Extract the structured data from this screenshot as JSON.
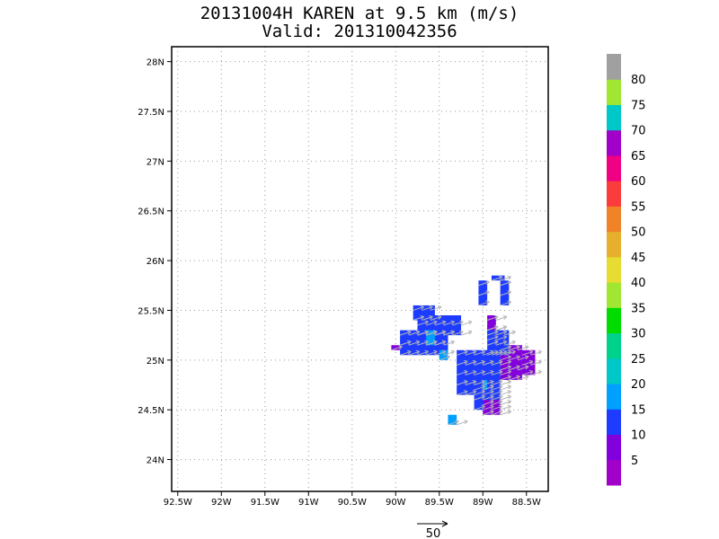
{
  "chart_data": {
    "type": "heatmap",
    "title": "20131004H KAREN at 9.5 km (m/s)",
    "subtitle": "Valid: 201310042356",
    "xlabel": "",
    "ylabel": "",
    "xlim": [
      -92.57,
      -88.25
    ],
    "ylim": [
      23.68,
      28.15
    ],
    "x_ticks": [
      {
        "value": -92.5,
        "label": "92.5W"
      },
      {
        "value": -92.0,
        "label": "92W"
      },
      {
        "value": -91.5,
        "label": "91.5W"
      },
      {
        "value": -91.0,
        "label": "91W"
      },
      {
        "value": -90.5,
        "label": "90.5W"
      },
      {
        "value": -90.0,
        "label": "90W"
      },
      {
        "value": -89.5,
        "label": "89.5W"
      },
      {
        "value": -89.0,
        "label": "89W"
      },
      {
        "value": -88.5,
        "label": "88.5W"
      }
    ],
    "y_ticks": [
      {
        "value": 24.0,
        "label": "24N"
      },
      {
        "value": 24.5,
        "label": "24.5N"
      },
      {
        "value": 25.0,
        "label": "25N"
      },
      {
        "value": 25.5,
        "label": "25.5N"
      },
      {
        "value": 26.0,
        "label": "26N"
      },
      {
        "value": 26.5,
        "label": "26.5N"
      },
      {
        "value": 27.0,
        "label": "27N"
      },
      {
        "value": 27.5,
        "label": "27.5N"
      },
      {
        "value": 28.0,
        "label": "28N"
      }
    ],
    "grid": true,
    "colorbar": {
      "levels": [
        5,
        10,
        15,
        20,
        25,
        30,
        35,
        40,
        45,
        50,
        55,
        60,
        65,
        70,
        75,
        80
      ],
      "labels": [
        "5",
        "10",
        "15",
        "20",
        "25",
        "30",
        "35",
        "40",
        "45",
        "50",
        "55",
        "60",
        "65",
        "70",
        "75",
        "80"
      ],
      "colors": [
        "#a000c8",
        "#8200dc",
        "#1e3cff",
        "#00a0ff",
        "#00c8c8",
        "#00d28c",
        "#00dc00",
        "#a0e632",
        "#e6dc32",
        "#e6af2d",
        "#f08228",
        "#fa3c3c",
        "#f00082",
        "#a000c8",
        "#00c8c8",
        "#a0e632",
        "#a0a0a0"
      ]
    },
    "cell_size_deg": [
      0.05,
      0.05
    ],
    "cells": [
      {
        "lat_range": [
          25.8,
          25.85
        ],
        "lon_range": [
          -88.9,
          -88.75
        ],
        "speed": 12
      },
      {
        "lat_range": [
          25.55,
          25.8
        ],
        "lon_range": [
          -89.05,
          -88.95
        ],
        "speed": 12
      },
      {
        "lat_range": [
          25.55,
          25.8
        ],
        "lon_range": [
          -88.8,
          -88.7
        ],
        "speed": 12
      },
      {
        "lat_range": [
          25.2,
          25.35
        ],
        "lon_range": [
          -88.95,
          -88.85
        ],
        "speed": 12
      },
      {
        "lat_range": [
          25.3,
          25.45
        ],
        "lon_range": [
          -88.95,
          -88.85
        ],
        "speed": 8
      },
      {
        "lat_range": [
          25.25,
          25.45
        ],
        "lon_range": [
          -89.75,
          -89.25
        ],
        "speed": 12
      },
      {
        "lat_range": [
          25.05,
          25.3
        ],
        "lon_range": [
          -89.95,
          -89.4
        ],
        "speed": 12
      },
      {
        "lat_range": [
          25.4,
          25.55
        ],
        "lon_range": [
          -89.8,
          -89.55
        ],
        "speed": 12
      },
      {
        "lat_range": [
          25.15,
          25.3
        ],
        "lon_range": [
          -89.65,
          -89.55
        ],
        "speed": 18
      },
      {
        "lat_range": [
          25.1,
          25.15
        ],
        "lon_range": [
          -90.05,
          -89.95
        ],
        "speed": 6
      },
      {
        "lat_range": [
          25.0,
          25.1
        ],
        "lon_range": [
          -89.5,
          -89.4
        ],
        "speed": 18
      },
      {
        "lat_range": [
          24.65,
          25.1
        ],
        "lon_range": [
          -89.3,
          -88.8
        ],
        "speed": 12
      },
      {
        "lat_range": [
          24.5,
          24.8
        ],
        "lon_range": [
          -89.1,
          -88.8
        ],
        "speed": 12
      },
      {
        "lat_range": [
          24.7,
          24.8
        ],
        "lon_range": [
          -89.0,
          -88.95
        ],
        "speed": 18
      },
      {
        "lat_range": [
          24.8,
          25.15
        ],
        "lon_range": [
          -88.8,
          -88.55
        ],
        "speed": 8
      },
      {
        "lat_range": [
          24.85,
          25.1
        ],
        "lon_range": [
          -88.55,
          -88.4
        ],
        "speed": 6
      },
      {
        "lat_range": [
          24.45,
          24.6
        ],
        "lon_range": [
          -89.0,
          -88.8
        ],
        "speed": 8
      },
      {
        "lat_range": [
          25.05,
          25.3
        ],
        "lon_range": [
          -88.95,
          -88.7
        ],
        "speed": 12
      },
      {
        "lat_range": [
          24.35,
          24.45
        ],
        "lon_range": [
          -89.4,
          -89.3
        ],
        "speed": 18
      }
    ],
    "vector_scale": {
      "label": "50"
    }
  }
}
